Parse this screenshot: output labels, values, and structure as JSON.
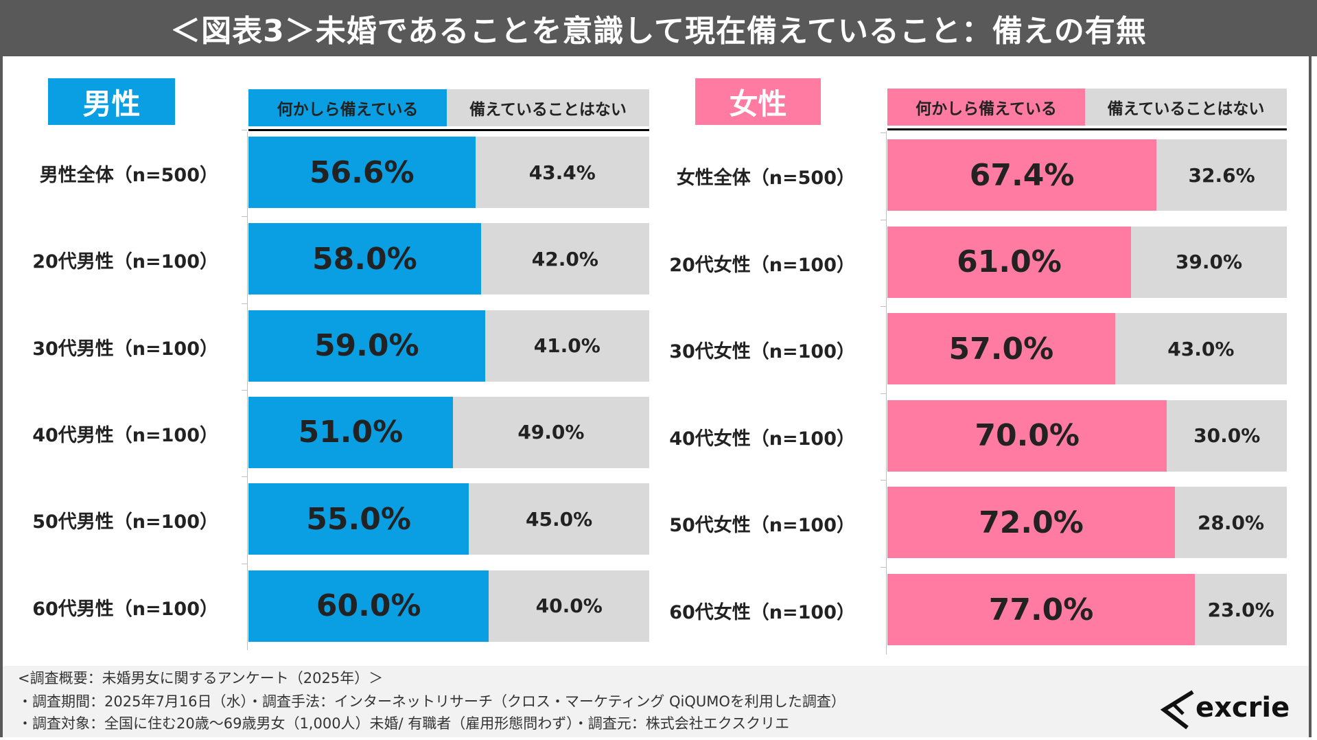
{
  "title": "＜図表3＞未婚であることを意識して現在備えていること：備えの有無",
  "colors": {
    "male": "#0a9fe3",
    "female": "#ff7ba1",
    "not_prepared": "#d9d9d9",
    "header_bg": "#595959"
  },
  "chart_data": [
    {
      "type": "bar",
      "stacked": true,
      "orientation": "horizontal",
      "title": "男性",
      "legend": [
        "何かしら備えている",
        "備えていることはない"
      ],
      "categories": [
        "男性全体（n=500）",
        "20代男性（n=100）",
        "30代男性（n=100）",
        "40代男性（n=100）",
        "50代男性（n=100）",
        "60代男性（n=100）"
      ],
      "series": [
        {
          "name": "何かしら備えている",
          "values": [
            56.6,
            58.0,
            59.0,
            51.0,
            55.0,
            60.0
          ],
          "labels": [
            "56.6%",
            "58.0%",
            "59.0%",
            "51.0%",
            "55.0%",
            "60.0%"
          ]
        },
        {
          "name": "備えていることはない",
          "values": [
            43.4,
            42.0,
            41.0,
            49.0,
            45.0,
            40.0
          ],
          "labels": [
            "43.4%",
            "42.0%",
            "41.0%",
            "49.0%",
            "45.0%",
            "40.0%"
          ]
        }
      ],
      "xlim": [
        0,
        100
      ]
    },
    {
      "type": "bar",
      "stacked": true,
      "orientation": "horizontal",
      "title": "女性",
      "legend": [
        "何かしら備えている",
        "備えていることはない"
      ],
      "categories": [
        "女性全体（n=500）",
        "20代女性（n=100）",
        "30代女性（n=100）",
        "40代女性（n=100）",
        "50代女性（n=100）",
        "60代女性（n=100）"
      ],
      "series": [
        {
          "name": "何かしら備えている",
          "values": [
            67.4,
            61.0,
            57.0,
            70.0,
            72.0,
            77.0
          ],
          "labels": [
            "67.4%",
            "61.0%",
            "57.0%",
            "70.0%",
            "72.0%",
            "77.0%"
          ]
        },
        {
          "name": "備えていることはない",
          "values": [
            32.6,
            39.0,
            43.0,
            30.0,
            28.0,
            23.0
          ],
          "labels": [
            "32.6%",
            "39.0%",
            "43.0%",
            "30.0%",
            "28.0%",
            "23.0%"
          ]
        }
      ],
      "xlim": [
        0,
        100
      ]
    }
  ],
  "footer": {
    "line1": "<調査概要：未婚男女に関するアンケート（2025年）＞",
    "line2": "・調査期間：2025年7月16日（水）・調査手法：インターネットリサーチ（クロス・マーケティング QiQUMOを利用した調査）",
    "line3": "・調査対象：全国に住む20歳～69歳男女（1,000人）未婚/ 有職者（雇用形態問わず）・調査元：株式会社エクスクリエ"
  },
  "logo": {
    "text": "excrie"
  }
}
